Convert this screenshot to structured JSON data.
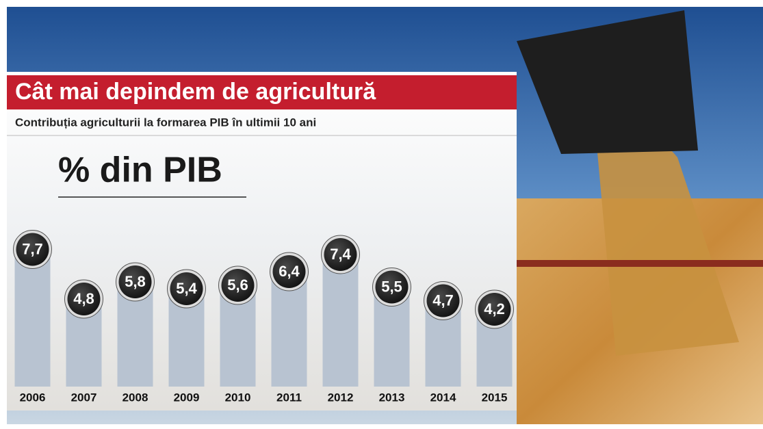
{
  "chart_data": {
    "type": "bar",
    "title": "Cât mai depindem de agricultură",
    "subtitle": "Contribuția agriculturii la formarea PIB în ultimii 10 ani",
    "y_label": "% din PIB",
    "categories": [
      "2006",
      "2007",
      "2008",
      "2009",
      "2010",
      "2011",
      "2012",
      "2013",
      "2014",
      "2015"
    ],
    "values": [
      7.7,
      4.8,
      5.8,
      5.4,
      5.6,
      6.4,
      7.4,
      5.5,
      4.7,
      4.2
    ],
    "value_labels": [
      "7,7",
      "4,8",
      "5,8",
      "5,4",
      "5,6",
      "6,4",
      "7,4",
      "5,5",
      "4,7",
      "4,2"
    ],
    "color": "#b8c3d1"
  }
}
